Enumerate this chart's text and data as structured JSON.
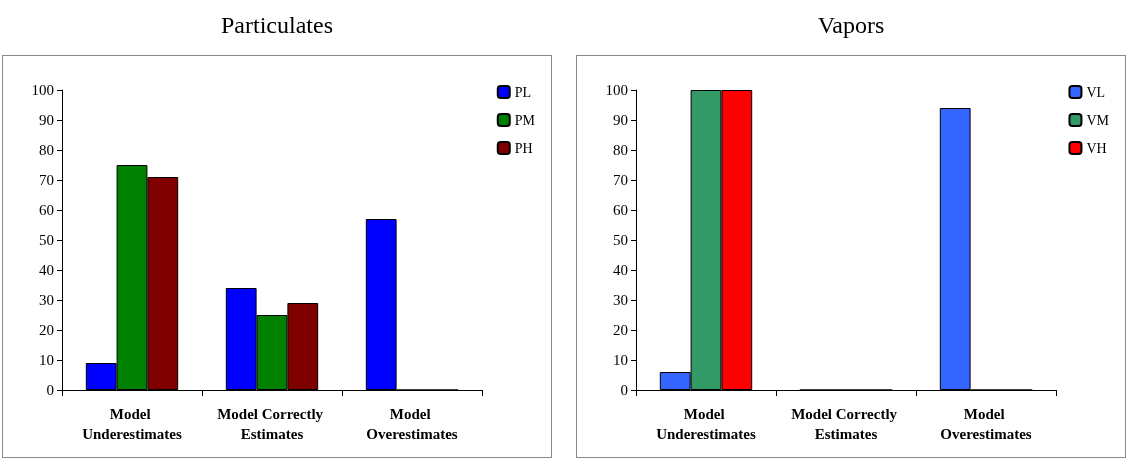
{
  "chart_data": [
    {
      "type": "bar",
      "title": "Particulates",
      "categories": [
        "Model Underestimates",
        "Model Correctly Estimates",
        "Model Overestimates"
      ],
      "series": [
        {
          "name": "PL",
          "color": "#0000ff",
          "values": [
            9,
            34,
            57
          ]
        },
        {
          "name": "PM",
          "color": "#008000",
          "values": [
            75,
            25,
            0
          ]
        },
        {
          "name": "PH",
          "color": "#800000",
          "values": [
            71,
            29,
            0
          ]
        }
      ],
      "ylim": [
        0,
        100
      ],
      "yticks": [
        0,
        10,
        20,
        30,
        40,
        50,
        60,
        70,
        80,
        90,
        100
      ],
      "grid": false,
      "legend": "top right"
    },
    {
      "type": "bar",
      "title": "Vapors",
      "categories": [
        "Model Underestimates",
        "Model Correctly Estimates",
        "Model Overestimates"
      ],
      "series": [
        {
          "name": "VL",
          "color": "#3366ff",
          "values": [
            6,
            0,
            94
          ]
        },
        {
          "name": "VM",
          "color": "#339966",
          "values": [
            100,
            0,
            0
          ]
        },
        {
          "name": "VH",
          "color": "#ff0000",
          "values": [
            100,
            0,
            0
          ]
        }
      ],
      "ylim": [
        0,
        100
      ],
      "yticks": [
        0,
        10,
        20,
        30,
        40,
        50,
        60,
        70,
        80,
        90,
        100
      ],
      "grid": false,
      "legend": "top right"
    }
  ]
}
